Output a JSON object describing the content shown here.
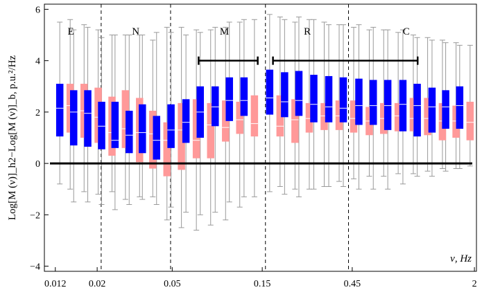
{
  "chart_data": {
    "type": "boxplot",
    "xlabel": "ν, Hz",
    "ylabel": "Log[M (ν)]_h2−Log[M (ν)]_b, p.u.²/Hz",
    "x_scale": "log",
    "xlim": [
      0.0105,
      2.05
    ],
    "ylim": [
      -4.2,
      6.2
    ],
    "x_ticks": [
      {
        "value": 0.012,
        "label": "0.012"
      },
      {
        "value": 0.02,
        "label": "0.02"
      },
      {
        "value": 0.05,
        "label": "0.05"
      },
      {
        "value": 0.15,
        "label": "0.15"
      },
      {
        "value": 0.45,
        "label": "0.45"
      },
      {
        "value": 2,
        "label": "2"
      }
    ],
    "y_ticks": [
      {
        "value": -4,
        "label": "−4"
      },
      {
        "value": -2,
        "label": "−2"
      },
      {
        "value": 0,
        "label": "0"
      },
      {
        "value": 2,
        "label": "2"
      },
      {
        "value": 4,
        "label": "4"
      },
      {
        "value": 6,
        "label": "6"
      }
    ],
    "zero_line": 0,
    "band_boundaries": [
      0.021,
      0.049,
      0.156,
      0.43
    ],
    "bands": [
      {
        "label": "E",
        "x": 0.0145
      },
      {
        "label": "N",
        "x": 0.032
      },
      {
        "label": "M",
        "x": 0.0945
      },
      {
        "label": "R",
        "x": 0.26
      },
      {
        "label": "C",
        "x": 0.87
      }
    ],
    "range_brackets": [
      {
        "from": 0.069,
        "to": 0.142,
        "y": 4.0
      },
      {
        "from": 0.171,
        "to": 1.0,
        "y": 4.0
      }
    ],
    "series_colors": {
      "blue": "#0000ff",
      "pink": "#ff9999"
    },
    "whisker_color": "#999999",
    "median_color": "#ffffff",
    "box_groups": [
      {
        "x": 0.0135,
        "blue": {
          "min": -0.8,
          "q1": 1.05,
          "median": 2.15,
          "q3": 3.1,
          "max": 5.5
        },
        "pink": {
          "min": -1.0,
          "q1": 1.2,
          "median": 2.25,
          "q3": 3.1,
          "max": 5.6
        }
      },
      {
        "x": 0.016,
        "blue": {
          "min": -1.5,
          "q1": 0.7,
          "median": 2.0,
          "q3": 2.85,
          "max": 5.2
        },
        "pink": {
          "min": -1.1,
          "q1": 1.0,
          "median": 2.05,
          "q3": 3.1,
          "max": 5.4
        }
      },
      {
        "x": 0.019,
        "blue": {
          "min": -1.5,
          "q1": 0.65,
          "median": 1.95,
          "q3": 2.85,
          "max": 5.3
        },
        "pink": {
          "min": -1.2,
          "q1": 0.8,
          "median": 1.8,
          "q3": 2.95,
          "max": 5.2
        }
      },
      {
        "x": 0.0225,
        "blue": {
          "min": -1.6,
          "q1": 0.55,
          "median": 1.45,
          "q3": 2.4,
          "max": 4.9
        },
        "pink": {
          "min": -1.1,
          "q1": 0.3,
          "median": 1.2,
          "q3": 2.6,
          "max": 5.0
        }
      },
      {
        "x": 0.0265,
        "blue": {
          "min": -1.8,
          "q1": 0.6,
          "median": 0.9,
          "q3": 2.4,
          "max": 5.0
        },
        "pink": {
          "min": -1.4,
          "q1": 0.6,
          "median": 1.35,
          "q3": 2.85,
          "max": 5.0
        }
      },
      {
        "x": 0.0315,
        "blue": {
          "min": -1.6,
          "q1": 0.4,
          "median": 1.1,
          "q3": 2.05,
          "max": 5.0
        },
        "pink": {
          "min": -1.3,
          "q1": 0.05,
          "median": 1.2,
          "q3": 2.55,
          "max": 5.0
        }
      },
      {
        "x": 0.037,
        "blue": {
          "min": -1.4,
          "q1": 0.4,
          "median": 1.2,
          "q3": 2.3,
          "max": 5.0
        },
        "pink": {
          "min": -1.3,
          "q1": -0.2,
          "median": 1.15,
          "q3": 2.05,
          "max": 4.8
        }
      },
      {
        "x": 0.044,
        "blue": {
          "min": -1.6,
          "q1": 0.15,
          "median": 0.9,
          "q3": 1.85,
          "max": 5.1
        },
        "pink": {
          "min": -2.2,
          "q1": -0.5,
          "median": 0.9,
          "q3": 1.6,
          "max": 5.3
        }
      },
      {
        "x": 0.0525,
        "blue": {
          "min": -1.7,
          "q1": 0.6,
          "median": 1.3,
          "q3": 2.3,
          "max": 5.1
        },
        "pink": {
          "min": -2.5,
          "q1": -0.25,
          "median": 1.3,
          "q3": 2.35,
          "max": 5.3
        }
      },
      {
        "x": 0.063,
        "blue": {
          "min": -1.9,
          "q1": 0.8,
          "median": 1.6,
          "q3": 2.5,
          "max": 5.0
        },
        "pink": {
          "min": -2.6,
          "q1": 0.2,
          "median": 0.9,
          "q3": 2.5,
          "max": 5.2
        }
      },
      {
        "x": 0.075,
        "blue": {
          "min": -2.0,
          "q1": 1.0,
          "median": 2.0,
          "q3": 3.0,
          "max": 5.1
        },
        "pink": {
          "min": -2.4,
          "q1": 0.2,
          "median": 1.5,
          "q3": 2.35,
          "max": 5.2
        }
      },
      {
        "x": 0.09,
        "blue": {
          "min": -1.9,
          "q1": 1.45,
          "median": 2.2,
          "q3": 3.0,
          "max": 5.3
        },
        "pink": {
          "min": -2.2,
          "q1": 0.85,
          "median": 1.4,
          "q3": 2.45,
          "max": 5.3
        }
      },
      {
        "x": 0.107,
        "blue": {
          "min": -1.5,
          "q1": 1.65,
          "median": 2.45,
          "q3": 3.35,
          "max": 5.5
        },
        "pink": {
          "min": -1.7,
          "q1": 1.15,
          "median": 1.7,
          "q3": 2.4,
          "max": 5.5
        }
      },
      {
        "x": 0.128,
        "blue": {
          "min": -1.3,
          "q1": 1.85,
          "median": 2.45,
          "q3": 3.35,
          "max": 5.6
        },
        "pink": {
          "min": -1.3,
          "q1": 1.05,
          "median": 1.55,
          "q3": 2.65,
          "max": 5.6
        }
      },
      {
        "x": 0.175,
        "blue": {
          "min": -1.1,
          "q1": 1.9,
          "median": 2.55,
          "q3": 3.65,
          "max": 5.8
        },
        "pink": {
          "min": -0.9,
          "q1": 1.05,
          "median": 1.45,
          "q3": 2.65,
          "max": 5.7
        }
      },
      {
        "x": 0.21,
        "blue": {
          "min": -1.2,
          "q1": 1.8,
          "median": 2.4,
          "q3": 3.55,
          "max": 5.6
        },
        "pink": {
          "min": -1.0,
          "q1": 0.8,
          "median": 1.7,
          "q3": 2.5,
          "max": 5.5
        }
      },
      {
        "x": 0.25,
        "blue": {
          "min": -1.3,
          "q1": 1.85,
          "median": 2.45,
          "q3": 3.6,
          "max": 5.7
        },
        "pink": {
          "min": -1.0,
          "q1": 1.2,
          "median": 1.75,
          "q3": 2.35,
          "max": 5.6
        }
      },
      {
        "x": 0.3,
        "blue": {
          "min": -1.0,
          "q1": 1.6,
          "median": 2.3,
          "q3": 3.45,
          "max": 5.6
        },
        "pink": {
          "min": -0.9,
          "q1": 1.3,
          "median": 1.85,
          "q3": 2.35,
          "max": 5.5
        }
      },
      {
        "x": 0.36,
        "blue": {
          "min": -0.9,
          "q1": 1.6,
          "median": 2.2,
          "q3": 3.4,
          "max": 5.4
        },
        "pink": {
          "min": -0.7,
          "q1": 1.3,
          "median": 1.85,
          "q3": 2.45,
          "max": 5.4
        }
      },
      {
        "x": 0.43,
        "blue": {
          "min": -0.9,
          "q1": 1.6,
          "median": 2.15,
          "q3": 3.35,
          "max": 5.4
        },
        "pink": {
          "min": -0.6,
          "q1": 1.2,
          "median": 1.75,
          "q3": 2.45,
          "max": 5.3
        }
      },
      {
        "x": 0.52,
        "blue": {
          "min": -1.0,
          "q1": 1.5,
          "median": 2.25,
          "q3": 3.3,
          "max": 5.4
        },
        "pink": {
          "min": -0.5,
          "q1": 1.1,
          "median": 1.65,
          "q3": 2.2,
          "max": 5.2
        }
      },
      {
        "x": 0.62,
        "blue": {
          "min": -1.0,
          "q1": 1.5,
          "median": 2.25,
          "q3": 3.25,
          "max": 5.3
        },
        "pink": {
          "min": -0.5,
          "q1": 1.15,
          "median": 1.75,
          "q3": 2.35,
          "max": 5.2
        }
      },
      {
        "x": 0.74,
        "blue": {
          "min": -1.0,
          "q1": 1.3,
          "median": 2.25,
          "q3": 3.25,
          "max": 5.2
        },
        "pink": {
          "min": -0.4,
          "q1": 1.25,
          "median": 1.85,
          "q3": 2.35,
          "max": 5.1
        }
      },
      {
        "x": 0.89,
        "blue": {
          "min": -0.8,
          "q1": 1.25,
          "median": 2.3,
          "q3": 3.25,
          "max": 5.2
        },
        "pink": {
          "min": -0.4,
          "q1": 1.25,
          "median": 1.75,
          "q3": 2.55,
          "max": 5.0
        }
      },
      {
        "x": 1.06,
        "blue": {
          "min": -0.5,
          "q1": 1.05,
          "median": 2.25,
          "q3": 3.1,
          "max": 4.9
        },
        "pink": {
          "min": -0.3,
          "q1": 1.1,
          "median": 1.75,
          "q3": 2.55,
          "max": 4.9
        }
      },
      {
        "x": 1.27,
        "blue": {
          "min": -0.5,
          "q1": 1.2,
          "median": 2.2,
          "q3": 2.95,
          "max": 4.8
        },
        "pink": {
          "min": -0.2,
          "q1": 0.9,
          "median": 1.65,
          "q3": 2.35,
          "max": 4.8
        }
      },
      {
        "x": 1.5,
        "blue": {
          "min": -0.3,
          "q1": 1.35,
          "median": 2.2,
          "q3": 2.85,
          "max": 4.7
        },
        "pink": {
          "min": -0.2,
          "q1": 1.0,
          "median": 1.65,
          "q3": 2.25,
          "max": 4.7
        }
      },
      {
        "x": 1.78,
        "blue": {
          "min": -0.2,
          "q1": 1.35,
          "median": 2.25,
          "q3": 3.0,
          "max": 4.6
        },
        "pink": {
          "min": -0.1,
          "q1": 0.9,
          "median": 1.6,
          "q3": 2.4,
          "max": 4.6
        }
      }
    ]
  }
}
